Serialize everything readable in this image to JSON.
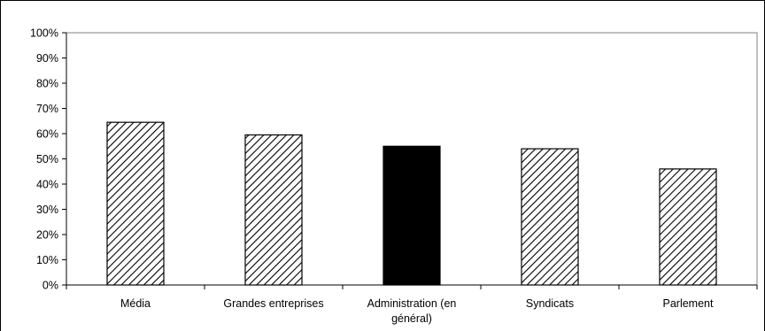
{
  "chart_data": {
    "type": "bar",
    "categories": [
      "Média",
      "Grandes entreprises",
      "Administration (en général)",
      "Syndicats",
      "Parlement"
    ],
    "category_lines": [
      [
        "Média"
      ],
      [
        "Grandes entreprises"
      ],
      [
        "Administration (en",
        "général)"
      ],
      [
        "Syndicats"
      ],
      [
        "Parlement"
      ]
    ],
    "values": [
      64.5,
      59.5,
      55,
      54,
      46
    ],
    "bar_styles": [
      "hatched",
      "hatched",
      "solid",
      "hatched",
      "hatched"
    ],
    "colors": {
      "solid": "#000000",
      "hatch": "#000000",
      "background": "#ffffff"
    },
    "ylim": [
      0,
      100
    ],
    "yticks": [
      0,
      10,
      20,
      30,
      40,
      50,
      60,
      70,
      80,
      90,
      100
    ],
    "ytick_labels": [
      "0%",
      "10%",
      "20%",
      "30%",
      "40%",
      "50%",
      "60%",
      "70%",
      "80%",
      "90%",
      "100%"
    ],
    "grid": false,
    "title": "",
    "xlabel": "",
    "ylabel": ""
  }
}
